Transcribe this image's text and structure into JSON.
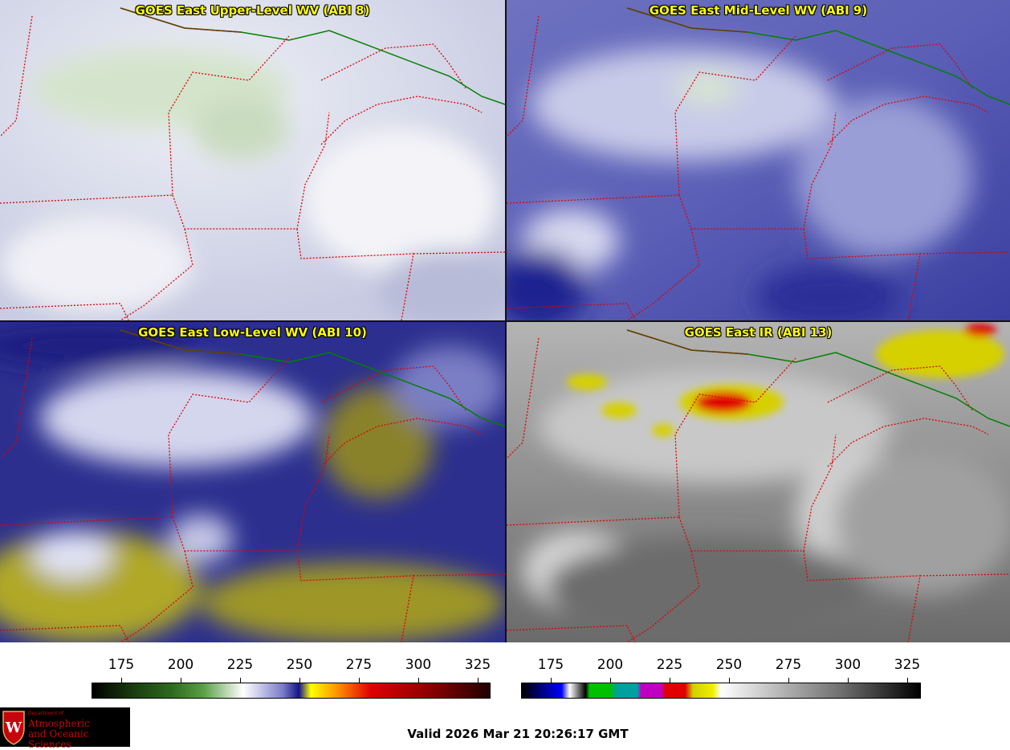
{
  "panels": [
    {
      "title": "GOES East Upper-Level WV (ABI 8)"
    },
    {
      "title": "GOES East Mid-Level WV (ABI 9)"
    },
    {
      "title": "GOES East Low-Level WV (ABI 10)"
    },
    {
      "title": "GOES East IR (ABI 13)"
    }
  ],
  "colorbars": [
    {
      "ticks": [
        "175",
        "200",
        "225",
        "250",
        "275",
        "300",
        "325"
      ]
    },
    {
      "ticks": [
        "175",
        "200",
        "225",
        "250",
        "275",
        "300",
        "325"
      ]
    }
  ],
  "logo": {
    "dept": "Department of",
    "line1": "Atmospheric",
    "line2": "and Oceanic Sciences"
  },
  "valid": "Valid 2026 Mar 21 20:26:17 GMT"
}
